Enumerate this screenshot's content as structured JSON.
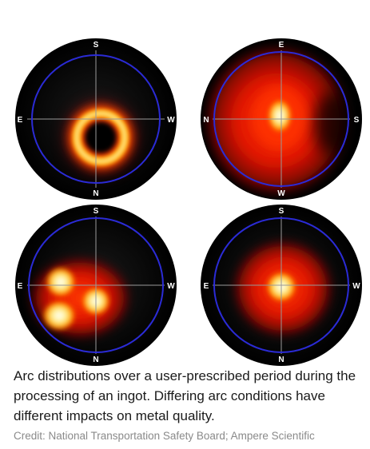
{
  "plots": [
    {
      "top": "S",
      "bottom": "N",
      "left": "E",
      "right": "W"
    },
    {
      "top": "E",
      "bottom": "W",
      "left": "N",
      "right": "S"
    },
    {
      "top": "S",
      "bottom": "N",
      "left": "E",
      "right": "W"
    },
    {
      "top": "S",
      "bottom": "N",
      "left": "E",
      "right": "W"
    }
  ],
  "caption": "Arc distributions over a user-prescribed period during the processing of an ingot. Differing arc conditions have different impacts on metal quality.",
  "credit": "Credit: National Transportation Safety Board; Ampere Scientific",
  "colors": {
    "ring": "#2b2bd6",
    "crosshair": "#9a9a9a",
    "hot": "#fffbe0",
    "warm": "#ffcc00",
    "glow": "#ff2a00",
    "background": "#050505"
  }
}
